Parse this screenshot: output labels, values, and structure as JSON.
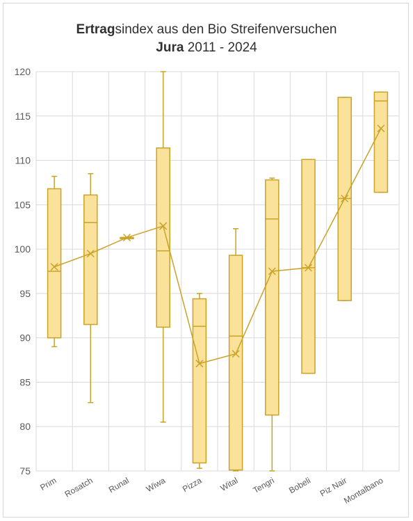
{
  "chart_data": {
    "type": "boxplot",
    "title": {
      "line1_bold": "Ertrag",
      "line1_rest": "sindex aus den Bio Streifenversuchen",
      "line2_bold": "Jura",
      "line2_rest": " 2011 - 2024"
    },
    "xlabel": "",
    "ylabel": "",
    "ylim": [
      75,
      120
    ],
    "yticks": [
      75,
      80,
      85,
      90,
      95,
      100,
      105,
      110,
      115,
      120
    ],
    "grid": true,
    "legend": "none",
    "colors": {
      "box_fill": "#fbe29a",
      "box_stroke": "#c9a227",
      "mean_line": "#c9a227",
      "grid": "#d9d9d9",
      "axis_text": "#595959"
    },
    "categories": [
      "Prim",
      "Rosatch",
      "Runal",
      "Wiwa",
      "Pizza",
      "Wital",
      "Tengri",
      "Bobeli",
      "Piz Nair",
      "Montalbano"
    ],
    "boxes": [
      {
        "min": 89,
        "q1": 90,
        "median": 97.5,
        "q3": 106.8,
        "max": 108.2,
        "mean": 98
      },
      {
        "min": 82.7,
        "q1": 91.5,
        "median": 103,
        "q3": 106.1,
        "max": 108.5,
        "mean": 99.5
      },
      {
        "min": 101.3,
        "q1": 101.3,
        "median": 101.3,
        "q3": 101.3,
        "max": 101.3,
        "mean": 101.3
      },
      {
        "min": 80.5,
        "q1": 91.2,
        "median": 99.8,
        "q3": 111.4,
        "max": 120,
        "mean": 102.6
      },
      {
        "min": 75.3,
        "q1": 75.9,
        "median": 91.3,
        "q3": 94.4,
        "max": 95,
        "mean": 87.1
      },
      {
        "min": 75,
        "q1": 75.1,
        "median": 90.2,
        "q3": 99.3,
        "max": 102.3,
        "mean": 88.2
      },
      {
        "min": 75,
        "q1": 81.3,
        "median": 103.4,
        "q3": 107.8,
        "max": 108,
        "mean": 97.5
      },
      {
        "min": 86,
        "q1": 86,
        "median": 97.9,
        "q3": 110.1,
        "max": 110.1,
        "mean": 97.9
      },
      {
        "min": 94.2,
        "q1": 94.2,
        "median": 105.7,
        "q3": 117.1,
        "max": 117.1,
        "mean": 105.7
      },
      {
        "min": 106.4,
        "q1": 106.4,
        "median": 116.7,
        "q3": 117.7,
        "max": 117.7,
        "mean": 113.6
      }
    ]
  }
}
